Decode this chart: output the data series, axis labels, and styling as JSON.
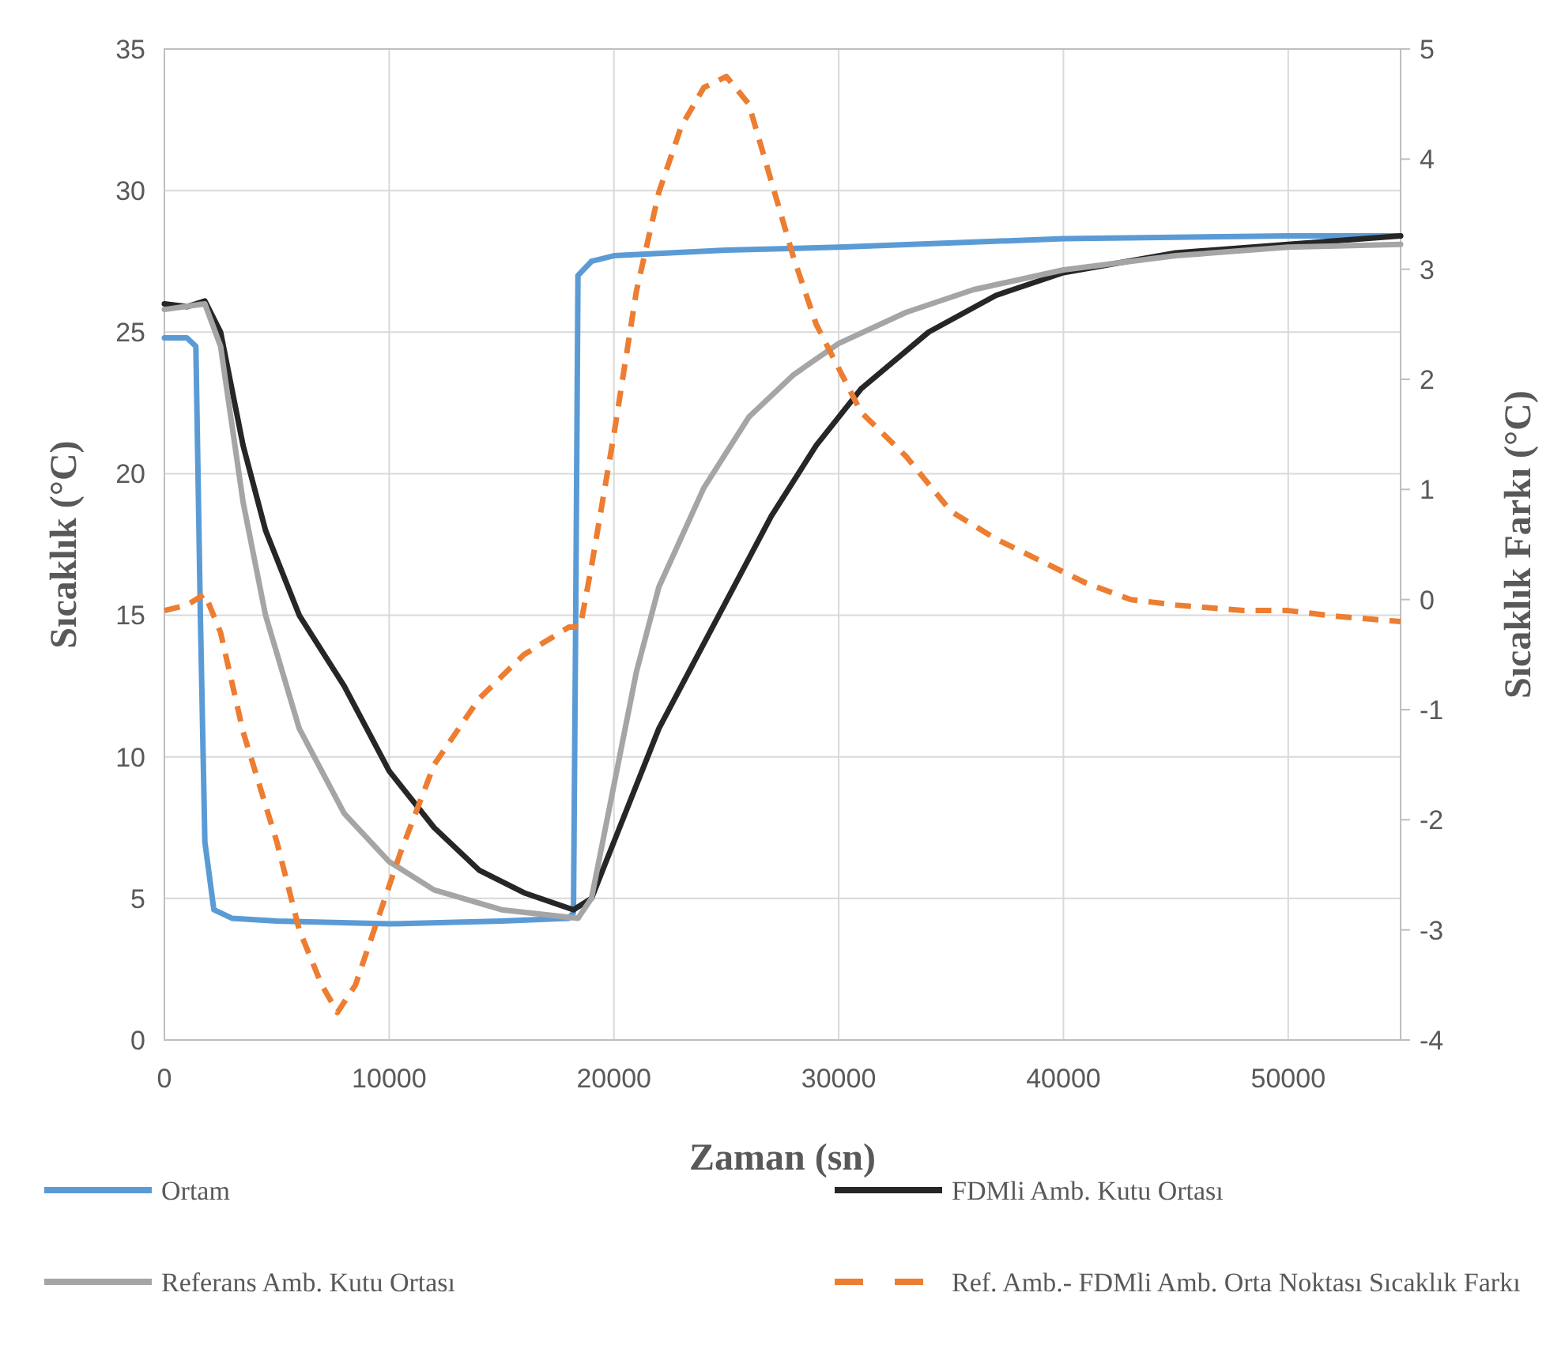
{
  "chart_data": {
    "type": "line",
    "xlabel": "Zaman (sn)",
    "ylabel": "Sıcaklık (°C)",
    "y2label": "Sıcaklık Farkı (°C)",
    "xlim": [
      0,
      55000
    ],
    "xticks": [
      0,
      10000,
      20000,
      30000,
      40000,
      50000
    ],
    "ylim": [
      0,
      35
    ],
    "yticks": [
      0,
      5,
      10,
      15,
      20,
      25,
      30,
      35
    ],
    "y2lim": [
      -4,
      5
    ],
    "y2ticks": [
      -4,
      -3,
      -2,
      -1,
      0,
      1,
      2,
      3,
      4,
      5
    ],
    "grid": true,
    "legend": "bottom",
    "line_style": "solid",
    "series": [
      {
        "name": "Ortam",
        "color": "#5b9bd5",
        "x": [
          0,
          1000,
          1400,
          1600,
          1800,
          2200,
          3000,
          5000,
          10000,
          15000,
          18000,
          18200,
          18300,
          18400,
          19000,
          20000,
          25000,
          30000,
          40000,
          50000,
          55000
        ],
        "values": [
          24.8,
          24.8,
          24.5,
          15,
          7,
          4.6,
          4.3,
          4.2,
          4.1,
          4.2,
          4.3,
          4.5,
          15,
          27,
          27.5,
          27.7,
          27.9,
          28.0,
          28.3,
          28.4,
          28.4
        ]
      },
      {
        "name": "FDMli Amb. Kutu Ortası",
        "color": "#262626",
        "x": [
          0,
          1000,
          1800,
          2500,
          3500,
          4500,
          6000,
          8000,
          10000,
          12000,
          14000,
          16000,
          18200,
          19000,
          20000,
          22000,
          25000,
          27000,
          29000,
          31000,
          34000,
          37000,
          40000,
          45000,
          50000,
          55000
        ],
        "values": [
          26,
          25.9,
          26.1,
          25,
          21,
          18,
          15,
          12.5,
          9.5,
          7.5,
          6,
          5.2,
          4.6,
          5,
          7,
          11,
          15.5,
          18.5,
          21,
          23,
          25,
          26.3,
          27.1,
          27.8,
          28.1,
          28.4
        ]
      },
      {
        "name": "Referans Amb. Kutu Ortası",
        "color": "#a5a5a5",
        "x": [
          0,
          1800,
          2500,
          3500,
          4500,
          6000,
          8000,
          10000,
          12000,
          15000,
          18400,
          19000,
          20000,
          21000,
          22000,
          24000,
          26000,
          28000,
          30000,
          33000,
          36000,
          40000,
          45000,
          50000,
          55000
        ],
        "values": [
          25.8,
          26,
          24.5,
          19,
          15,
          11,
          8,
          6.3,
          5.3,
          4.6,
          4.3,
          5,
          9,
          13,
          16,
          19.5,
          22,
          23.5,
          24.6,
          25.7,
          26.5,
          27.2,
          27.7,
          28,
          28.1
        ]
      },
      {
        "name": "Ref. Amb.- FDMli Amb. Orta Noktası Sıcaklık Farkı",
        "color": "#ed7d31",
        "axis": "y2",
        "line_style": "dashed",
        "x": [
          0,
          1000,
          1800,
          2500,
          3500,
          5000,
          6000,
          7000,
          7700,
          8500,
          9500,
          10500,
          12000,
          14000,
          16000,
          18000,
          18500,
          19000,
          20000,
          21000,
          22000,
          23000,
          24000,
          25000,
          26000,
          27000,
          28000,
          29000,
          30000,
          31000,
          33000,
          35000,
          37000,
          39000,
          41000,
          43000,
          45000,
          48000,
          50000,
          52000,
          55000
        ],
        "values": [
          -0.1,
          -0.05,
          0.05,
          -0.3,
          -1.2,
          -2.2,
          -3,
          -3.5,
          -3.75,
          -3.5,
          -2.9,
          -2.3,
          -1.5,
          -0.9,
          -0.5,
          -0.25,
          -0.25,
          0.3,
          1.5,
          2.8,
          3.7,
          4.3,
          4.65,
          4.75,
          4.5,
          3.8,
          3.1,
          2.5,
          2.1,
          1.7,
          1.3,
          0.8,
          0.55,
          0.35,
          0.15,
          0,
          -0.05,
          -0.1,
          -0.1,
          -0.15,
          -0.2
        ]
      }
    ]
  }
}
